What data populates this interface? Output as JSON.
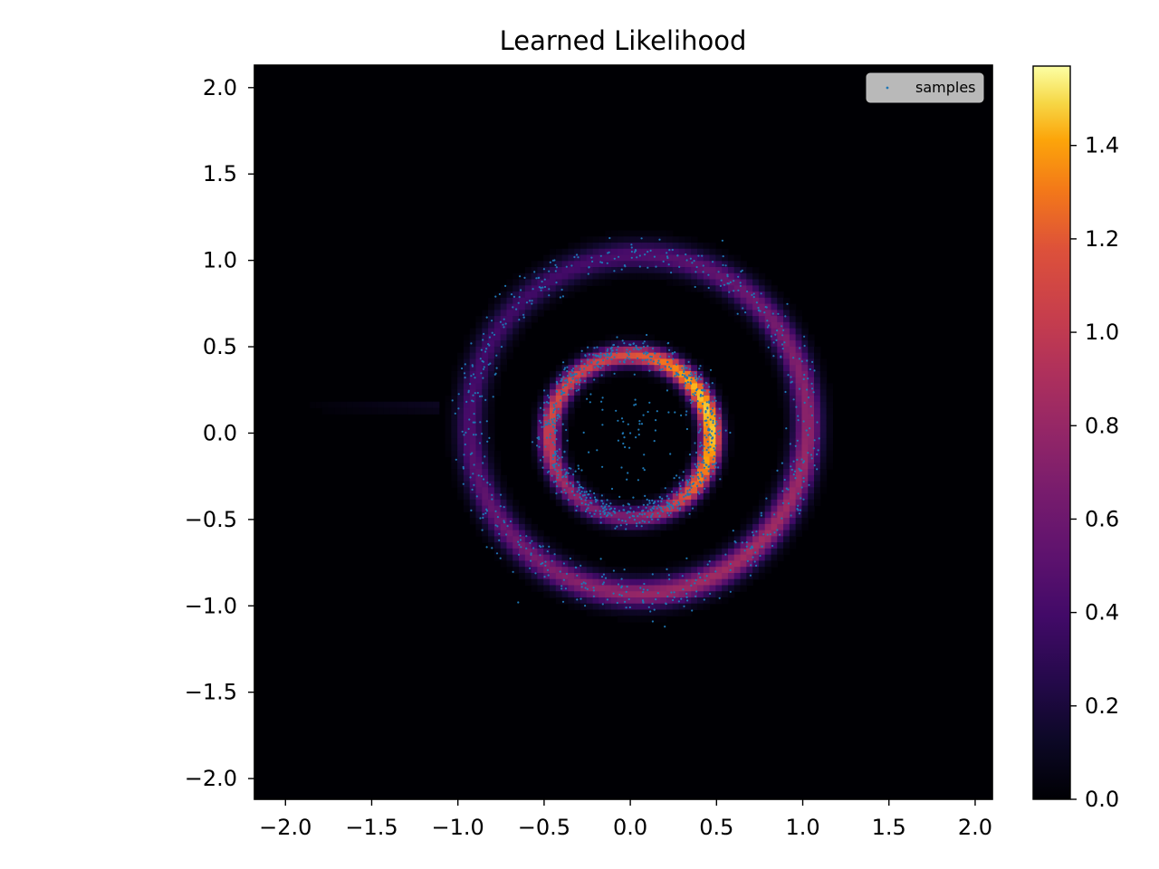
{
  "chart_data": {
    "type": "heatmap",
    "title": "Learned Likelihood",
    "xlabel": "",
    "ylabel": "",
    "xlim": [
      -2.18,
      2.1
    ],
    "ylim": [
      -2.12,
      2.13
    ],
    "x_ticks": [
      -2.0,
      -1.5,
      -1.0,
      -0.5,
      0.0,
      0.5,
      1.0,
      1.5,
      2.0
    ],
    "y_ticks": [
      -2.0,
      -1.5,
      -1.0,
      -0.5,
      0.0,
      0.5,
      1.0,
      1.5,
      2.0
    ],
    "x_tick_labels": [
      "−2.0",
      "−1.5",
      "−1.0",
      "−0.5",
      "0.0",
      "0.5",
      "1.0",
      "1.5",
      "2.0"
    ],
    "y_tick_labels": [
      "−2.0",
      "−1.5",
      "−1.0",
      "−0.5",
      "0.0",
      "0.5",
      "1.0",
      "1.5",
      "2.0"
    ],
    "colormap": "inferno",
    "colorbar": {
      "range": [
        0.0,
        1.57
      ],
      "ticks": [
        0.0,
        0.2,
        0.4,
        0.6,
        0.8,
        1.0,
        1.2,
        1.4
      ],
      "tick_labels": [
        "0.0",
        "0.2",
        "0.4",
        "0.6",
        "0.8",
        "1.0",
        "1.2",
        "1.4"
      ]
    },
    "density_features": [
      {
        "feature": "inner ring",
        "center": [
          0.0,
          0.0
        ],
        "radius": 0.47,
        "peak_value": 1.5
      },
      {
        "feature": "outer ring",
        "center": [
          0.05,
          0.1
        ],
        "radius": 0.98,
        "peak_value": 0.8
      },
      {
        "feature": "left streak",
        "x_range": [
          -1.95,
          -1.4
        ],
        "y": 0.15,
        "peak_value": 0.1
      }
    ],
    "legend": {
      "position": "top-right",
      "entries": [
        "samples"
      ]
    },
    "scatter_series": {
      "name": "samples",
      "color": "#1f77b4",
      "description_points": [
        {
          "x": 0.17,
          "y": 1.12
        },
        {
          "x": 0.1,
          "y": 1.05
        },
        {
          "x": -0.5,
          "y": 0.95
        },
        {
          "x": 0.2,
          "y": -1.12
        },
        {
          "x": 0.13,
          "y": -1.09
        },
        {
          "x": -0.65,
          "y": -0.98
        },
        {
          "x": -0.3,
          "y": 0.25
        },
        {
          "x": 0.35,
          "y": -0.25
        }
      ]
    }
  }
}
